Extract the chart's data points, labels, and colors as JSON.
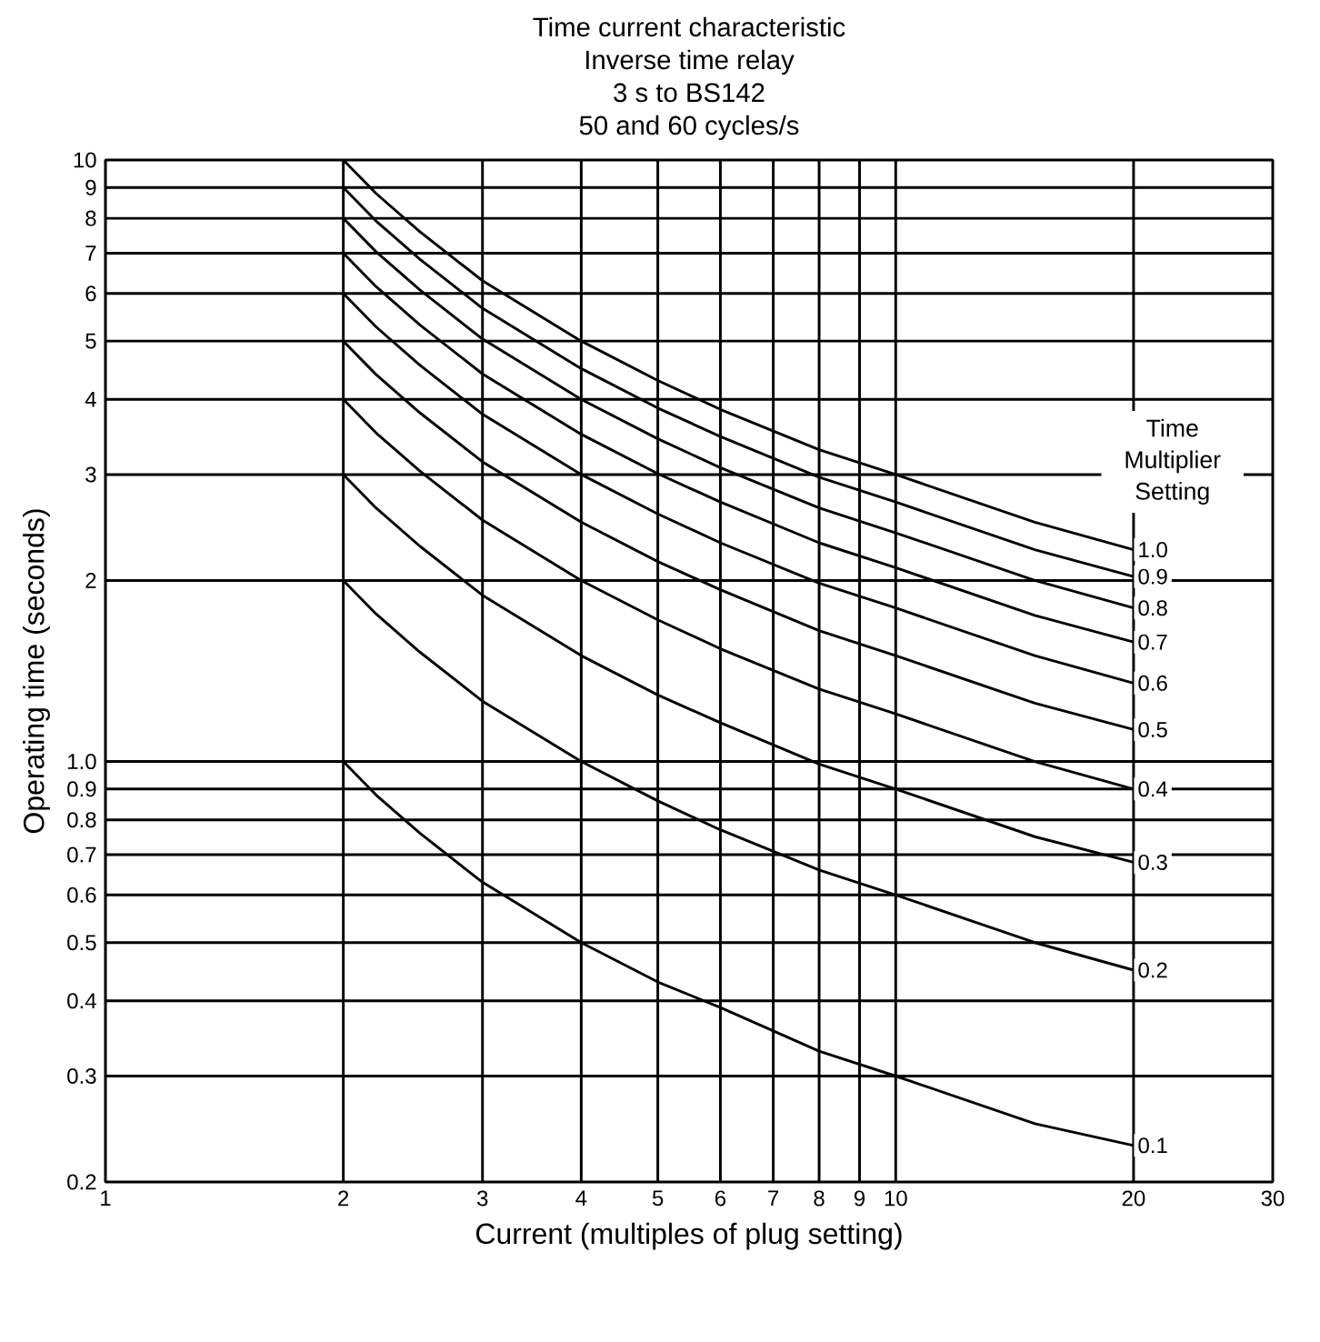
{
  "chart_data": {
    "type": "line",
    "title": "Time current characteristic",
    "subtitle": "Inverse time relay",
    "annotations": [
      "3 s to BS142",
      "50 and 60 cycles/s"
    ],
    "xlabel": "Current (multiples of plug setting)",
    "ylabel": "Operating time (seconds)",
    "legend_title": "Time Multiplier Setting",
    "log": "xy",
    "grid": true,
    "marker": "none",
    "line_style": "solid",
    "xlim": [
      1,
      30
    ],
    "ylim": [
      0.2,
      10
    ],
    "xticks": [
      1,
      2,
      3,
      4,
      5,
      6,
      7,
      8,
      9,
      10,
      20,
      30
    ],
    "yticks": [
      0.2,
      0.3,
      0.4,
      0.5,
      0.6,
      0.7,
      0.8,
      0.9,
      {
        "value": 1,
        "label": "1.0"
      },
      2,
      3,
      4,
      5,
      6,
      7,
      8,
      9,
      10
    ],
    "x": [
      2,
      2.2,
      2.5,
      3,
      4,
      5,
      6,
      8,
      10,
      15,
      20
    ],
    "series": [
      {
        "name": "1.0",
        "color": "#000000",
        "values": [
          10.0,
          8.8,
          7.6,
          6.3,
          5.0,
          4.3,
          3.85,
          3.3,
          3.0,
          2.5,
          2.25
        ]
      },
      {
        "name": "0.9",
        "color": "#000000",
        "values": [
          9.0,
          7.92,
          6.84,
          5.67,
          4.5,
          3.87,
          3.47,
          2.97,
          2.7,
          2.25,
          2.03
        ]
      },
      {
        "name": "0.8",
        "color": "#000000",
        "values": [
          8.0,
          7.04,
          6.08,
          5.04,
          4.0,
          3.44,
          3.08,
          2.64,
          2.4,
          2.0,
          1.8
        ]
      },
      {
        "name": "0.7",
        "color": "#000000",
        "values": [
          7.0,
          6.16,
          5.32,
          4.41,
          3.5,
          3.01,
          2.7,
          2.31,
          2.1,
          1.75,
          1.58
        ]
      },
      {
        "name": "0.6",
        "color": "#000000",
        "values": [
          6.0,
          5.28,
          4.56,
          3.78,
          3.0,
          2.58,
          2.31,
          1.98,
          1.8,
          1.5,
          1.35
        ]
      },
      {
        "name": "0.5",
        "color": "#000000",
        "values": [
          5.0,
          4.4,
          3.8,
          3.15,
          2.5,
          2.15,
          1.93,
          1.65,
          1.5,
          1.25,
          1.13
        ]
      },
      {
        "name": "0.4",
        "color": "#000000",
        "values": [
          4.0,
          3.52,
          3.04,
          2.52,
          2.0,
          1.72,
          1.54,
          1.32,
          1.2,
          1.0,
          0.9
        ]
      },
      {
        "name": "0.3",
        "color": "#000000",
        "values": [
          3.0,
          2.64,
          2.28,
          1.89,
          1.5,
          1.29,
          1.16,
          0.99,
          0.9,
          0.75,
          0.68
        ]
      },
      {
        "name": "0.2",
        "color": "#000000",
        "values": [
          2.0,
          1.76,
          1.52,
          1.26,
          1.0,
          0.86,
          0.77,
          0.66,
          0.6,
          0.5,
          0.45
        ]
      },
      {
        "name": "0.1",
        "color": "#000000",
        "values": [
          1.0,
          0.88,
          0.76,
          0.63,
          0.5,
          0.43,
          0.39,
          0.33,
          0.3,
          0.25,
          0.23
        ]
      }
    ]
  }
}
